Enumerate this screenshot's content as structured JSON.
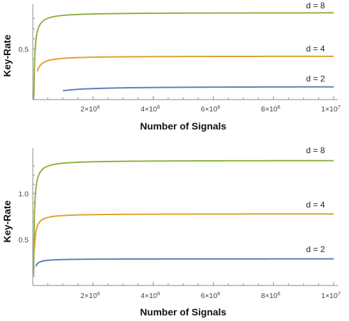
{
  "chart_data": [
    {
      "type": "line",
      "xlabel": "Number of Signals",
      "ylabel": "Key-Rate",
      "xlim": [
        0,
        10000000
      ],
      "ylim": [
        0,
        0.86
      ],
      "x_ticks": [
        {
          "value": 2000000,
          "mantissa": "2×10",
          "exponent": "6"
        },
        {
          "value": 4000000,
          "mantissa": "4×10",
          "exponent": "6"
        },
        {
          "value": 6000000,
          "mantissa": "6×10",
          "exponent": "6"
        },
        {
          "value": 8000000,
          "mantissa": "8×10",
          "exponent": "6"
        },
        {
          "value": 10000000,
          "mantissa": "1×10",
          "exponent": "7"
        }
      ],
      "y_ticks": [
        {
          "value": 0.5,
          "label": "0.5"
        }
      ],
      "series": [
        {
          "name": "d = 8",
          "color": "#8db33f",
          "asymptote": 0.86,
          "k": 0.033,
          "x0": 0.01
        },
        {
          "name": "d = 4",
          "color": "#e0a030",
          "asymptote": 0.43,
          "k": 0.053,
          "x0": 0.15
        },
        {
          "name": "d = 2",
          "color": "#5b7fb8",
          "asymptote": 0.13,
          "k": 0.33,
          "x0": 1.0
        }
      ]
    },
    {
      "type": "line",
      "xlabel": "Number of Signals",
      "ylabel": "Key-Rate",
      "xlim": [
        0,
        10000000
      ],
      "ylim": [
        0,
        1.4
      ],
      "x_ticks": [
        {
          "value": 2000000,
          "mantissa": "2×10",
          "exponent": "6"
        },
        {
          "value": 4000000,
          "mantissa": "4×10",
          "exponent": "6"
        },
        {
          "value": 6000000,
          "mantissa": "6×10",
          "exponent": "6"
        },
        {
          "value": 8000000,
          "mantissa": "8×10",
          "exponent": "6"
        },
        {
          "value": 10000000,
          "mantissa": "1×10",
          "exponent": "7"
        }
      ],
      "y_ticks": [
        {
          "value": 0.5,
          "label": "0.5"
        },
        {
          "value": 1.0,
          "label": "1.0"
        }
      ],
      "series": [
        {
          "name": "d = 8",
          "color": "#8db33f",
          "asymptote": 1.36,
          "k": 0.023,
          "x0": 0.0
        },
        {
          "name": "d = 4",
          "color": "#e0a030",
          "asymptote": 0.78,
          "k": 0.026,
          "x0": 0.05
        },
        {
          "name": "d = 2",
          "color": "#5b7fb8",
          "asymptote": 0.29,
          "k": 0.028,
          "x0": 0.1
        }
      ]
    }
  ]
}
